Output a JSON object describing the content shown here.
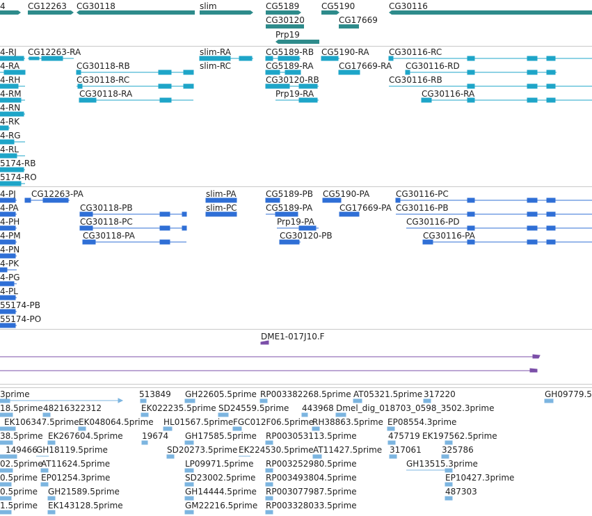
{
  "colors": {
    "gene": "#2e8b8b",
    "transcript": "#1ea5c8",
    "protein": "#2f6fd6",
    "clone": "#7b4fa8",
    "est": "#7cb5e0",
    "separator": "#c8c8c8"
  },
  "tracks": {
    "genes": {
      "labels": [
        "4",
        "CG12263",
        "CG30118",
        "slim",
        "CG5189",
        "CG5190",
        "CG30116",
        "CG30120",
        "CG17669",
        "Prp19"
      ]
    },
    "transcripts": {
      "labels": [
        "4-RJ",
        "CG12263-RA",
        "slim-RA",
        "CG5189-RB",
        "CG5190-RA",
        "CG30116-RC",
        "4-RA",
        "CG30118-RB",
        "slim-RC",
        "CG5189-RA",
        "CG17669-RA",
        "CG30116-RD",
        "4-RH",
        "CG30118-RC",
        "CG30120-RB",
        "CG30116-RB",
        "4-RM",
        "CG30118-RA",
        "Prp19-RA",
        "CG30116-RA",
        "4-RN",
        "4-RK",
        "4-RG",
        "4-RL",
        "5174-RB",
        "5174-RO"
      ]
    },
    "proteins": {
      "labels": [
        "4-PJ",
        "CG12263-PA",
        "slim-PA",
        "CG5189-PB",
        "CG5190-PA",
        "CG30116-PC",
        "4-PA",
        "CG30118-PB",
        "slim-PC",
        "CG5189-PA",
        "CG17669-PA",
        "CG30116-PB",
        "4-PH",
        "CG30118-PC",
        "Prp19-PA",
        "CG30116-PD",
        "4-PM",
        "CG30118-PA",
        "CG30120-PB",
        "CG30116-PA",
        "4-PN",
        "4-PK",
        "4-PG",
        "4-PL",
        "55174-PB",
        "55174-PO"
      ]
    },
    "clones": {
      "labels": [
        "DME1-017J10.F"
      ]
    },
    "ests": {
      "labels": [
        "3prime",
        "513849",
        "GH22605.5prime",
        "RP003382268.5prime",
        "AT05321.5prime",
        "317220",
        "GH09779.5",
        "18.5prime",
        "48216322312",
        "EK022235.5prime",
        "SD24559.5prime",
        "443968",
        "Dmel_dig_018703_0598_3502.3prime",
        "EK106347.5prime",
        "EK048064.5prime",
        "HL01567.5prime",
        "FGC012F06.5prime",
        "RH38863.5prime",
        "EP08554.3prime",
        "38.5prime",
        "19674",
        "EK267604.5prime",
        "GH17585.5prime",
        "RP003053113.5prime",
        "475719",
        "EK197562.5prime",
        "149466",
        "SD20273.5prime",
        "EK224530.5prime",
        "AT11427.5prime",
        "317061",
        "325786",
        "02.5prime",
        "GH18119.5prime",
        "AT11624.5prime",
        "LP09971.5prime",
        "RP003252980.5prime",
        "GH13515.3prime",
        "0.5prime",
        "EP01254.3prime",
        "SD23002.5prime",
        "RP003493804.5prime",
        "EP10427.3prime",
        "0.5prime",
        "GH21589.5prime",
        "GH14444.5prime",
        "RP003077987.5prime",
        "487303",
        "1.5prime",
        "EK143128.5prime",
        "GM22216.5prime",
        "RP003328033.5prime"
      ]
    }
  }
}
